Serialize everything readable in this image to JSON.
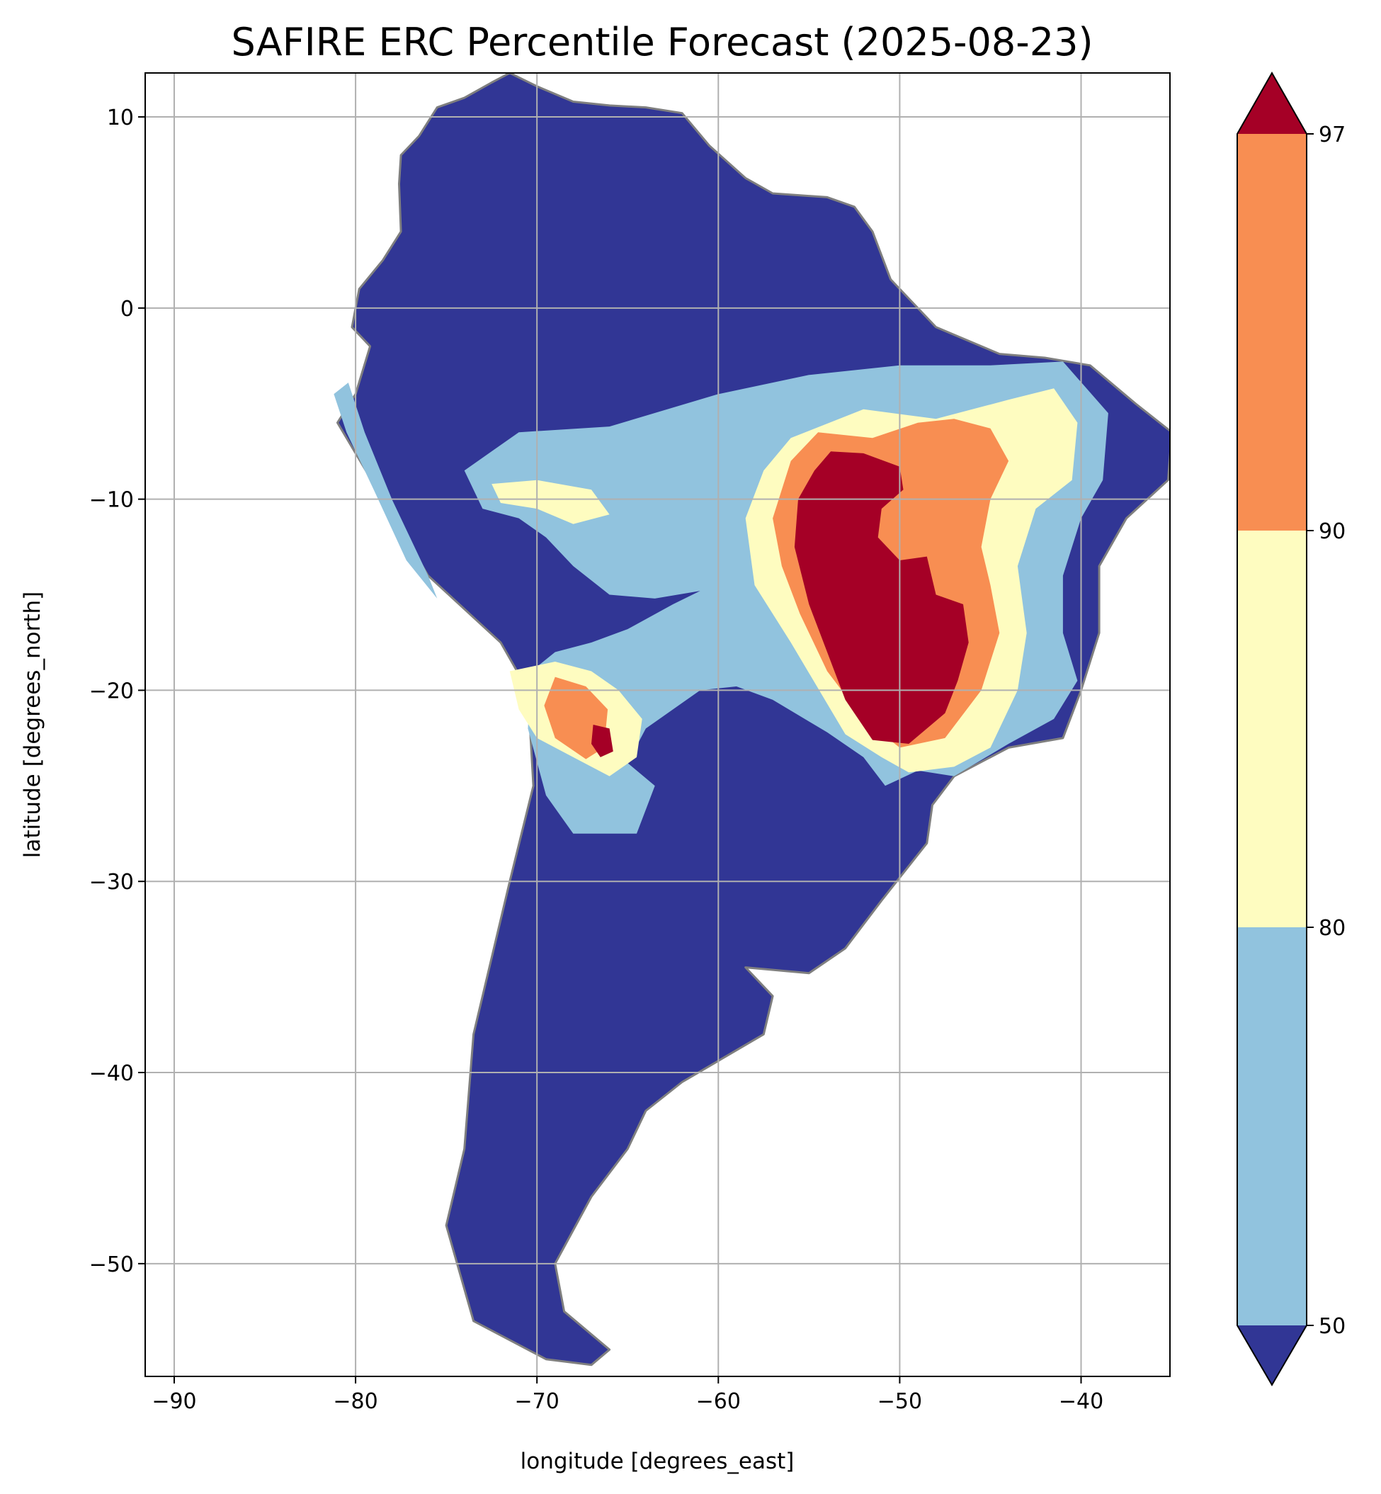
{
  "title": "SAFIRE ERC Percentile Forecast (2025-08-23)",
  "xlabel": "longitude [degrees_east]",
  "ylabel": "latitude [degrees_north]",
  "map_extent": {
    "lon": [
      -91.6,
      -35.1
    ],
    "lat": [
      -55.9,
      12.3
    ]
  },
  "x_ticks": [
    -90,
    -80,
    -70,
    -60,
    -50,
    -40
  ],
  "y_ticks": [
    10,
    0,
    -10,
    -20,
    -30,
    -40,
    -50
  ],
  "x_tick_labels": [
    "−90",
    "−80",
    "−70",
    "−60",
    "−50",
    "−40"
  ],
  "y_tick_labels": [
    "10",
    "0",
    "−10",
    "−20",
    "−30",
    "−40",
    "−50"
  ],
  "grid": true,
  "colors": {
    "below_50": "#313695",
    "50_80": "#91c3de",
    "80_90": "#fefcc0",
    "90_97": "#f88e52",
    "above_97": "#a50026",
    "borders": "#7f7f7f",
    "grid": "#b0b0b0"
  },
  "colorbar": {
    "ticks": [
      50,
      80,
      90,
      97
    ],
    "tick_labels": [
      "50",
      "80",
      "90",
      "97"
    ],
    "extend": "both"
  },
  "chart_data": {
    "type": "heatmap",
    "title": "SAFIRE ERC Percentile Forecast (2025-08-23)",
    "xlabel": "longitude [degrees_east]",
    "ylabel": "latitude [degrees_north]",
    "xlim": [
      -91.6,
      -35.1
    ],
    "ylim": [
      -55.9,
      12.3
    ],
    "levels": [
      50,
      80,
      90,
      97
    ],
    "regions": [
      {
        "band": "<50",
        "coords": [
          [
            -79.2,
            -2
          ],
          [
            -80,
            -4.5
          ],
          [
            -81,
            -6
          ],
          [
            -78.5,
            -10
          ],
          [
            -76,
            -14
          ],
          [
            -72,
            -17.5
          ],
          [
            -70.5,
            -20
          ],
          [
            -70.2,
            -25
          ],
          [
            -71.5,
            -30
          ],
          [
            -73.5,
            -38
          ],
          [
            -74,
            -44
          ],
          [
            -75,
            -48
          ],
          [
            -73.5,
            -53
          ],
          [
            -69.5,
            -55
          ],
          [
            -67,
            -55.3
          ],
          [
            -66,
            -54.5
          ],
          [
            -68.5,
            -52.5
          ],
          [
            -69,
            -50
          ],
          [
            -67,
            -46.5
          ],
          [
            -65,
            -44
          ],
          [
            -64,
            -42
          ],
          [
            -62,
            -40.5
          ],
          [
            -57.5,
            -38
          ],
          [
            -57,
            -36
          ],
          [
            -58.5,
            -34.5
          ],
          [
            -55,
            -34.8
          ],
          [
            -53,
            -33.5
          ],
          [
            -51,
            -31
          ],
          [
            -48.5,
            -28
          ],
          [
            -48.2,
            -26
          ],
          [
            -47,
            -24.5
          ],
          [
            -44,
            -23
          ],
          [
            -41,
            -22.5
          ],
          [
            -40,
            -20
          ],
          [
            -39,
            -17
          ],
          [
            -39,
            -13.5
          ],
          [
            -37.5,
            -11
          ],
          [
            -35.2,
            -9
          ],
          [
            -35,
            -6.5
          ],
          [
            -37,
            -5
          ],
          [
            -39.5,
            -3
          ],
          [
            -42,
            -2.6
          ],
          [
            -44.5,
            -2.4
          ],
          [
            -48,
            -1
          ],
          [
            -49.5,
            0.5
          ],
          [
            -50.5,
            1.5
          ],
          [
            -51.5,
            4
          ],
          [
            -52.5,
            5.3
          ],
          [
            -54,
            5.8
          ],
          [
            -57,
            6
          ],
          [
            -58.5,
            6.8
          ],
          [
            -60.5,
            8.5
          ],
          [
            -62,
            10.2
          ],
          [
            -64,
            10.5
          ],
          [
            -66,
            10.6
          ],
          [
            -68,
            10.8
          ],
          [
            -70,
            11.6
          ],
          [
            -71.5,
            12.3
          ],
          [
            -72.5,
            11.8
          ],
          [
            -74,
            11
          ],
          [
            -75.5,
            10.5
          ],
          [
            -76.5,
            9
          ],
          [
            -77.5,
            8
          ],
          [
            -77.6,
            6.5
          ],
          [
            -77.5,
            4
          ],
          [
            -78.5,
            2.5
          ],
          [
            -79.8,
            1
          ],
          [
            -80.2,
            -1
          ]
        ]
      },
      {
        "band": "50-80",
        "coords": [
          [
            -74,
            -8.5
          ],
          [
            -71,
            -6.5
          ],
          [
            -66,
            -6.2
          ],
          [
            -60,
            -4.5
          ],
          [
            -55,
            -3.5
          ],
          [
            -50,
            -3
          ],
          [
            -45,
            -3
          ],
          [
            -41,
            -2.8
          ],
          [
            -38.5,
            -5.5
          ],
          [
            -38.8,
            -9
          ],
          [
            -40,
            -11
          ],
          [
            -41,
            -14
          ],
          [
            -41,
            -17
          ],
          [
            -40.2,
            -19.5
          ],
          [
            -41.5,
            -21.5
          ],
          [
            -44,
            -22.8
          ],
          [
            -47,
            -24.5
          ],
          [
            -49,
            -24.2
          ],
          [
            -50.8,
            -25
          ],
          [
            -52,
            -23.5
          ],
          [
            -54,
            -22.2
          ],
          [
            -57,
            -20.5
          ],
          [
            -59,
            -19.8
          ],
          [
            -61,
            -20
          ],
          [
            -62.5,
            -21
          ],
          [
            -64,
            -22
          ],
          [
            -65,
            -23.8
          ],
          [
            -63.5,
            -25
          ],
          [
            -64.5,
            -27.5
          ],
          [
            -68,
            -27.5
          ],
          [
            -69.5,
            -25.5
          ],
          [
            -70.5,
            -22
          ],
          [
            -70.3,
            -19
          ],
          [
            -69,
            -18
          ],
          [
            -67,
            -17.5
          ],
          [
            -65,
            -16.8
          ],
          [
            -62.5,
            -15.5
          ],
          [
            -61,
            -14.8
          ],
          [
            -63.5,
            -15.2
          ],
          [
            -66,
            -15
          ],
          [
            -68,
            -13.5
          ],
          [
            -69.5,
            -12
          ],
          [
            -71,
            -11
          ],
          [
            -73,
            -10.5
          ]
        ]
      },
      {
        "band": "50-80",
        "coords": [
          [
            -81.2,
            -4.5
          ],
          [
            -80.4,
            -3.9
          ],
          [
            -79.5,
            -6.5
          ],
          [
            -78,
            -10
          ],
          [
            -76,
            -14
          ],
          [
            -75.5,
            -15.2
          ],
          [
            -77.2,
            -13.2
          ],
          [
            -79,
            -9.5
          ],
          [
            -80.5,
            -6.5
          ]
        ]
      },
      {
        "band": "80-90",
        "coords": [
          [
            -56,
            -6.8
          ],
          [
            -52,
            -5.3
          ],
          [
            -48,
            -5.8
          ],
          [
            -44,
            -4.8
          ],
          [
            -41.5,
            -4.2
          ],
          [
            -40.2,
            -6
          ],
          [
            -40.5,
            -9
          ],
          [
            -42.5,
            -10.5
          ],
          [
            -43.5,
            -13.5
          ],
          [
            -43,
            -17
          ],
          [
            -43.5,
            -20
          ],
          [
            -45,
            -23
          ],
          [
            -47,
            -24
          ],
          [
            -49.5,
            -24.3
          ],
          [
            -51,
            -23.5
          ],
          [
            -53,
            -22.3
          ],
          [
            -56,
            -17.5
          ],
          [
            -58,
            -14.5
          ],
          [
            -58.5,
            -11
          ],
          [
            -57.5,
            -8.5
          ]
        ]
      },
      {
        "band": "80-90",
        "coords": [
          [
            -71.5,
            -19
          ],
          [
            -69,
            -18.5
          ],
          [
            -67,
            -19
          ],
          [
            -65.5,
            -20
          ],
          [
            -64.2,
            -21.5
          ],
          [
            -64.5,
            -23.5
          ],
          [
            -66,
            -24.5
          ],
          [
            -68,
            -23.5
          ],
          [
            -70,
            -22.5
          ],
          [
            -71,
            -21
          ]
        ]
      },
      {
        "band": "80-90",
        "coords": [
          [
            -72.5,
            -9.2
          ],
          [
            -70,
            -9
          ],
          [
            -67,
            -9.5
          ],
          [
            -66,
            -10.8
          ],
          [
            -68,
            -11.3
          ],
          [
            -70,
            -10.5
          ],
          [
            -72,
            -10.2
          ]
        ]
      },
      {
        "band": "90-97",
        "coords": [
          [
            -54.5,
            -6.5
          ],
          [
            -51.5,
            -6.8
          ],
          [
            -49,
            -6
          ],
          [
            -47,
            -5.8
          ],
          [
            -45,
            -6.3
          ],
          [
            -44,
            -8
          ],
          [
            -45,
            -10
          ],
          [
            -45.5,
            -12.5
          ],
          [
            -45,
            -14.5
          ],
          [
            -44.5,
            -17
          ],
          [
            -45.5,
            -20
          ],
          [
            -47.5,
            -22.5
          ],
          [
            -50,
            -23
          ],
          [
            -52,
            -21.5
          ],
          [
            -54,
            -19
          ],
          [
            -55.5,
            -16
          ],
          [
            -56.5,
            -13.5
          ],
          [
            -57,
            -11
          ],
          [
            -56,
            -8
          ]
        ]
      },
      {
        "band": "90-97",
        "coords": [
          [
            -69,
            -19.3
          ],
          [
            -67.3,
            -19.8
          ],
          [
            -66.1,
            -21
          ],
          [
            -66.3,
            -23
          ],
          [
            -67.3,
            -23.6
          ],
          [
            -69,
            -22.5
          ],
          [
            -69.6,
            -20.8
          ]
        ]
      },
      {
        "band": ">97",
        "coords": [
          [
            -53.8,
            -7.5
          ],
          [
            -52,
            -7.6
          ],
          [
            -50,
            -8.3
          ],
          [
            -49.8,
            -9.5
          ],
          [
            -51,
            -10.5
          ],
          [
            -51.2,
            -12
          ],
          [
            -50,
            -13.2
          ],
          [
            -48.5,
            -13
          ],
          [
            -48,
            -15
          ],
          [
            -46.5,
            -15.5
          ],
          [
            -46.2,
            -17.5
          ],
          [
            -46.8,
            -19.5
          ],
          [
            -47.5,
            -21.2
          ],
          [
            -49.5,
            -22.8
          ],
          [
            -51.5,
            -22.6
          ],
          [
            -53,
            -20.5
          ],
          [
            -54,
            -18
          ],
          [
            -55,
            -15.5
          ],
          [
            -55.8,
            -12.5
          ],
          [
            -55.6,
            -10
          ],
          [
            -54.7,
            -8.5
          ]
        ]
      },
      {
        "band": ">97",
        "coords": [
          [
            -66.9,
            -21.8
          ],
          [
            -66,
            -22
          ],
          [
            -65.8,
            -23.2
          ],
          [
            -66.5,
            -23.5
          ],
          [
            -67,
            -22.8
          ]
        ]
      }
    ]
  }
}
